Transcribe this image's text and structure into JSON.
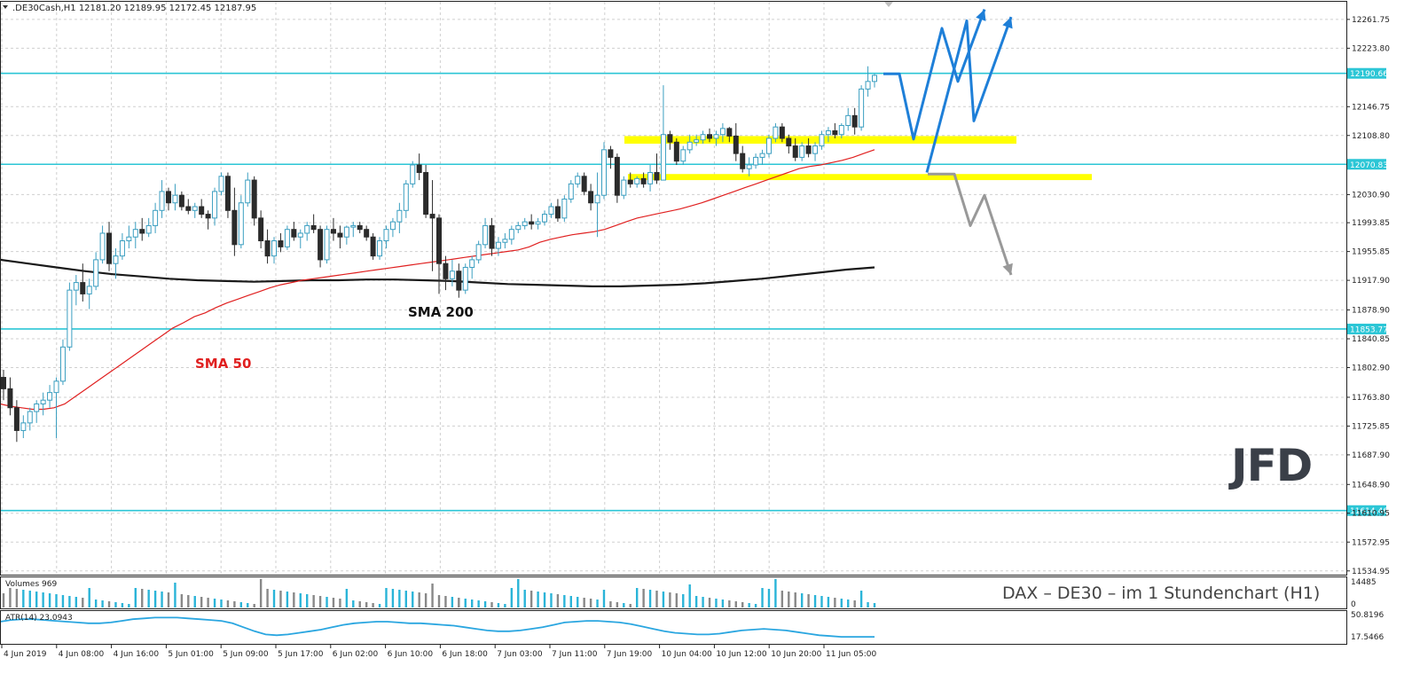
{
  "header": {
    "symbol_info": ".DE30Cash,H1  12181.20 12189.95 12172.45 12187.95"
  },
  "colors": {
    "bull_candle": "#4fb8d8",
    "bear_candle": "#2b2b2b",
    "sma50": "#e02020",
    "sma200": "#1a1a1a",
    "level_line": "#2cc6d6",
    "zone": "#ffff00",
    "scenario_up": "#1e7fd8",
    "scenario_down": "#999999",
    "atr_line": "#2aa6e0",
    "volume_bull": "#2ab4d8",
    "volume_bear": "#888888"
  },
  "price_axis": {
    "ticks": [
      "12261.75",
      "12223.80",
      "12146.75",
      "12108.80",
      "12030.90",
      "11993.85",
      "11955.85",
      "11917.90",
      "11878.90",
      "11840.85",
      "11802.90",
      "11763.80",
      "11725.85",
      "11687.90",
      "11648.90",
      "11610.95",
      "11572.95",
      "11534.95"
    ]
  },
  "level_labels": {
    "l1": "12190.66",
    "l2": "12070.83",
    "l3": "11853.77",
    "l4": "11614.46"
  },
  "time_axis": {
    "ticks": [
      "4 Jun 2019",
      "4 Jun 08:00",
      "4 Jun 16:00",
      "5 Jun 01:00",
      "5 Jun 09:00",
      "5 Jun 17:00",
      "6 Jun 02:00",
      "6 Jun 10:00",
      "6 Jun 18:00",
      "7 Jun 03:00",
      "7 Jun 11:00",
      "7 Jun 19:00",
      "10 Jun 04:00",
      "10 Jun 12:00",
      "10 Jun 20:00",
      "11 Jun 05:00"
    ]
  },
  "annotations": {
    "sma200": "SMA 200",
    "sma50": "SMA 50",
    "caption": "DAX – DE30 –  im  1 Stundenchart (H1)",
    "logo": "JFD"
  },
  "volume_panel": {
    "label": "Volumes 969",
    "ticks": [
      "14485",
      "0"
    ]
  },
  "atr_panel": {
    "label": "ATR(14) 23.0943",
    "ticks": [
      "50.8196",
      "17.5466"
    ]
  },
  "chart_data": [
    {
      "type": "candlestick",
      "title": ".DE30Cash,H1",
      "y_range": [
        11530,
        12285
      ],
      "levels": [
        12190.66,
        12070.83,
        11853.77,
        11614.46
      ],
      "zones": [
        [
          12098,
          12108
        ],
        [
          12050,
          12058
        ]
      ],
      "candles": [
        [
          11790,
          11800,
          11760,
          11775
        ],
        [
          11775,
          11790,
          11740,
          11750
        ],
        [
          11750,
          11760,
          11705,
          11720
        ],
        [
          11720,
          11740,
          11710,
          11730
        ],
        [
          11730,
          11750,
          11720,
          11745
        ],
        [
          11745,
          11760,
          11730,
          11755
        ],
        [
          11755,
          11770,
          11740,
          11760
        ],
        [
          11760,
          11780,
          11750,
          11770
        ],
        [
          11770,
          11790,
          11710,
          11785
        ],
        [
          11785,
          11840,
          11780,
          11830
        ],
        [
          11830,
          11915,
          11825,
          11905
        ],
        [
          11905,
          11925,
          11885,
          11915
        ],
        [
          11915,
          11940,
          11890,
          11900
        ],
        [
          11900,
          11920,
          11880,
          11910
        ],
        [
          11910,
          11955,
          11905,
          11945
        ],
        [
          11945,
          11990,
          11940,
          11980
        ],
        [
          11980,
          11995,
          11930,
          11940
        ],
        [
          11940,
          11960,
          11920,
          11950
        ],
        [
          11950,
          11980,
          11945,
          11970
        ],
        [
          11970,
          11990,
          11960,
          11975
        ],
        [
          11975,
          11995,
          11960,
          11985
        ],
        [
          11985,
          12000,
          11970,
          11980
        ],
        [
          11980,
          12000,
          11975,
          11990
        ],
        [
          11990,
          12020,
          11980,
          12010
        ],
        [
          12010,
          12050,
          12000,
          12035
        ],
        [
          12035,
          12040,
          12010,
          12020
        ],
        [
          12020,
          12045,
          12010,
          12030
        ],
        [
          12030,
          12035,
          12010,
          12015
        ],
        [
          12015,
          12025,
          12005,
          12010
        ],
        [
          12010,
          12020,
          12000,
          12015
        ],
        [
          12015,
          12025,
          12000,
          12005
        ],
        [
          12005,
          12010,
          11985,
          12000
        ],
        [
          12000,
          12040,
          11990,
          12035
        ],
        [
          12035,
          12060,
          12030,
          12055
        ],
        [
          12055,
          12060,
          12000,
          12010
        ],
        [
          12010,
          12040,
          11950,
          11965
        ],
        [
          11965,
          12030,
          11960,
          12020
        ],
        [
          12020,
          12060,
          12015,
          12050
        ],
        [
          12050,
          12055,
          11990,
          12000
        ],
        [
          12000,
          12010,
          11960,
          11970
        ],
        [
          11970,
          11985,
          11940,
          11950
        ],
        [
          11950,
          11975,
          11940,
          11970
        ],
        [
          11970,
          11980,
          11955,
          11962
        ],
        [
          11962,
          11990,
          11958,
          11985
        ],
        [
          11985,
          11995,
          11970,
          11975
        ],
        [
          11975,
          11985,
          11960,
          11980
        ],
        [
          11980,
          11995,
          11970,
          11990
        ],
        [
          11990,
          12005,
          11980,
          11985
        ],
        [
          11985,
          11990,
          11935,
          11945
        ],
        [
          11945,
          11990,
          11940,
          11985
        ],
        [
          11985,
          12000,
          11970,
          11980
        ],
        [
          11980,
          11990,
          11960,
          11975
        ],
        [
          11975,
          11990,
          11965,
          11988
        ],
        [
          11988,
          11995,
          11975,
          11990
        ],
        [
          11990,
          11995,
          11980,
          11985
        ],
        [
          11985,
          11990,
          11970,
          11975
        ],
        [
          11975,
          11980,
          11945,
          11950
        ],
        [
          11950,
          11975,
          11945,
          11970
        ],
        [
          11970,
          11990,
          11960,
          11985
        ],
        [
          11985,
          12000,
          11975,
          11995
        ],
        [
          11995,
          12020,
          11980,
          12010
        ],
        [
          12010,
          12050,
          12000,
          12045
        ],
        [
          12045,
          12075,
          12040,
          12070
        ],
        [
          12070,
          12085,
          12050,
          12060
        ],
        [
          12060,
          12070,
          12000,
          12005
        ],
        [
          12005,
          12050,
          11930,
          12000
        ],
        [
          12000,
          12005,
          11900,
          11940
        ],
        [
          11940,
          11950,
          11905,
          11920
        ],
        [
          11920,
          11945,
          11910,
          11930
        ],
        [
          11930,
          11940,
          11895,
          11905
        ],
        [
          11905,
          11940,
          11900,
          11935
        ],
        [
          11935,
          11950,
          11920,
          11945
        ],
        [
          11945,
          11970,
          11940,
          11965
        ],
        [
          11965,
          12000,
          11960,
          11990
        ],
        [
          11990,
          12000,
          11950,
          11960
        ],
        [
          11960,
          11975,
          11950,
          11968
        ],
        [
          11968,
          11980,
          11960,
          11972
        ],
        [
          11972,
          11990,
          11965,
          11985
        ],
        [
          11985,
          11995,
          11980,
          11990
        ],
        [
          11990,
          12000,
          11985,
          11995
        ],
        [
          11995,
          12005,
          11985,
          11992
        ],
        [
          11992,
          12000,
          11985,
          11995
        ],
        [
          11995,
          12010,
          11990,
          12005
        ],
        [
          12005,
          12020,
          12000,
          12015
        ],
        [
          12015,
          12025,
          11995,
          12000
        ],
        [
          12000,
          12030,
          11995,
          12025
        ],
        [
          12025,
          12050,
          12020,
          12045
        ],
        [
          12045,
          12060,
          12040,
          12055
        ],
        [
          12055,
          12060,
          12030,
          12035
        ],
        [
          12035,
          12045,
          12010,
          12020
        ],
        [
          12020,
          12060,
          11975,
          12030
        ],
        [
          12030,
          12100,
          12025,
          12090
        ],
        [
          12090,
          12095,
          12065,
          12080
        ],
        [
          12080,
          12085,
          12020,
          12030
        ],
        [
          12030,
          12055,
          12025,
          12050
        ],
        [
          12050,
          12060,
          12040,
          12045
        ],
        [
          12045,
          12055,
          12040,
          12052
        ],
        [
          12052,
          12060,
          12040,
          12045
        ],
        [
          12045,
          12070,
          12035,
          12060
        ],
        [
          12060,
          12085,
          12045,
          12050
        ],
        [
          12050,
          12175,
          12050,
          12110
        ],
        [
          12110,
          12115,
          12090,
          12100
        ],
        [
          12100,
          12105,
          12070,
          12075
        ],
        [
          12075,
          12095,
          12070,
          12090
        ],
        [
          12090,
          12110,
          12085,
          12100
        ],
        [
          12100,
          12110,
          12095,
          12103
        ],
        [
          12103,
          12115,
          12098,
          12110
        ],
        [
          12110,
          12118,
          12100,
          12105
        ],
        [
          12105,
          12115,
          12095,
          12110
        ],
        [
          12110,
          12125,
          12100,
          12118
        ],
        [
          12118,
          12120,
          12100,
          12108
        ],
        [
          12108,
          12125,
          12075,
          12085
        ],
        [
          12085,
          12095,
          12060,
          12065
        ],
        [
          12065,
          12080,
          12055,
          12070
        ],
        [
          12070,
          12085,
          12065,
          12080
        ],
        [
          12080,
          12090,
          12070,
          12085
        ],
        [
          12085,
          12110,
          12080,
          12105
        ],
        [
          12105,
          12125,
          12100,
          12120
        ],
        [
          12120,
          12125,
          12100,
          12105
        ],
        [
          12105,
          12110,
          12085,
          12095
        ],
        [
          12095,
          12105,
          12075,
          12080
        ],
        [
          12080,
          12100,
          12075,
          12095
        ],
        [
          12095,
          12105,
          12080,
          12085
        ],
        [
          12085,
          12100,
          12075,
          12095
        ],
        [
          12095,
          12115,
          12090,
          12110
        ],
        [
          12110,
          12120,
          12100,
          12115
        ],
        [
          12115,
          12125,
          12105,
          12110
        ],
        [
          12110,
          12125,
          12105,
          12122
        ],
        [
          12122,
          12145,
          12115,
          12135
        ],
        [
          12135,
          12145,
          12110,
          12120
        ],
        [
          12120,
          12175,
          12115,
          12170
        ],
        [
          12170,
          12200,
          12160,
          12180
        ],
        [
          12180,
          12190,
          12172,
          12188
        ]
      ],
      "series": [
        {
          "name": "SMA 50",
          "values": [
            11755,
            11752,
            11750,
            11748,
            11748,
            11750,
            11755,
            11765,
            11775,
            11785,
            11795,
            11805,
            11815,
            11825,
            11835,
            11845,
            11855,
            11862,
            11870,
            11875,
            11882,
            11888,
            11893,
            11898,
            11903,
            11908,
            11912,
            11915,
            11918,
            11920,
            11922,
            11924,
            11926,
            11928,
            11930,
            11932,
            11934,
            11936,
            11938,
            11940,
            11942,
            11944,
            11946,
            11948,
            11950,
            11952,
            11954,
            11956,
            11958,
            11962,
            11968,
            11972,
            11975,
            11978,
            11980,
            11982,
            11985,
            11990,
            11995,
            12000,
            12003,
            12006,
            12009,
            12012,
            12016,
            12020,
            12025,
            12030,
            12035,
            12040,
            12045,
            12050,
            12055,
            12060,
            12065,
            12068,
            12070,
            12073,
            12076,
            12080,
            12085,
            12090
          ]
        },
        {
          "name": "SMA 200",
          "values": [
            11945,
            11940,
            11935,
            11930,
            11926,
            11923,
            11920,
            11918,
            11917,
            11916,
            11917,
            11918,
            11918,
            11919,
            11919,
            11918,
            11917,
            11915,
            11913,
            11912,
            11911,
            11910,
            11910,
            11911,
            11912,
            11914,
            11917,
            11920,
            11924,
            11928,
            11932,
            11935
          ]
        }
      ],
      "scenarios": {
        "bullish_a": [
          [
            12190,
            12104
          ],
          [
            12250,
            12180
          ],
          [
            12275
          ]
        ],
        "bullish_b": [
          [
            12060,
            12260
          ],
          [
            12120,
            12265
          ]
        ],
        "bearish": [
          [
            12058,
            12058
          ],
          [
            11990,
            12030
          ],
          [
            11925
          ]
        ]
      }
    },
    {
      "type": "bar",
      "title": "Volumes 969",
      "ylim": [
        0,
        14485
      ]
    },
    {
      "type": "line",
      "title": "ATR(14) 23.0943",
      "ylim": [
        17.5466,
        50.8196
      ],
      "values": [
        42,
        44,
        45,
        45,
        44,
        43,
        42,
        41,
        40,
        40,
        41,
        43,
        45,
        46,
        47,
        47,
        47,
        46,
        45,
        44,
        43,
        40,
        35,
        30,
        26,
        25,
        26,
        28,
        30,
        32,
        35,
        38,
        40,
        41,
        42,
        42,
        41,
        40,
        40,
        39,
        38,
        37,
        35,
        33,
        31,
        30,
        30,
        31,
        33,
        35,
        38,
        41,
        42,
        43,
        43,
        42,
        41,
        39,
        36,
        33,
        30,
        28,
        27,
        26,
        26,
        27,
        29,
        31,
        32,
        33,
        32,
        31,
        29,
        27,
        25,
        24,
        23,
        23,
        23,
        23
      ]
    }
  ]
}
